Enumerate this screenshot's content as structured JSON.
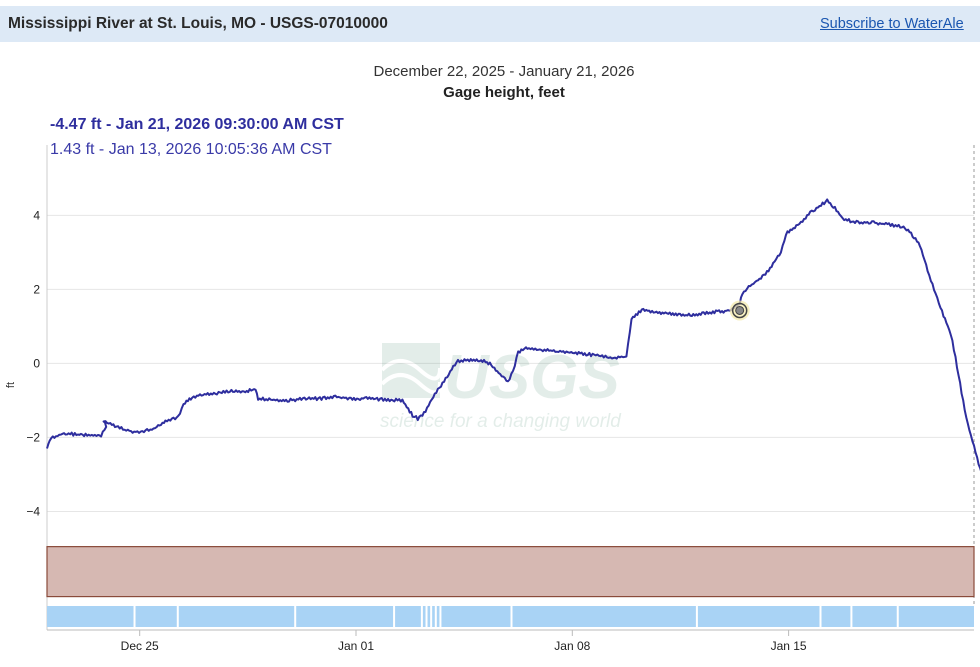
{
  "header": {
    "title": "Mississippi River at St. Louis, MO - USGS-07010000",
    "subscribe_label": "Subscribe to WaterAle"
  },
  "watermark": {
    "logo_text": "USGS",
    "tagline": "science for a changing world"
  },
  "readouts": {
    "current": "-4.47 ft - Jan 21, 2026 09:30:00 AM CST",
    "hover": "1.43 ft - Jan 13, 2026 10:05:36 AM CST"
  },
  "colors": {
    "series": "#2e2e9e",
    "header_bg": "#dde9f6",
    "band_fill": "#d6b8b2",
    "band_stroke": "#8a4a3a",
    "timeline": "#a9d3f5"
  },
  "chart_data": {
    "type": "line",
    "period": "December 22, 2025 - January 21, 2026",
    "title": "Gage height, feet",
    "ylabel": "ft",
    "xlim": [
      "2025-12-22",
      "2026-01-21"
    ],
    "ylim": [
      -6.5,
      5.9
    ],
    "yticks": [
      -4,
      -2,
      0,
      2,
      4
    ],
    "xticks": [
      {
        "date": "2025-12-25",
        "label": "Dec 25"
      },
      {
        "date": "2026-01-01",
        "label": "Jan 01"
      },
      {
        "date": "2026-01-08",
        "label": "Jan 08"
      },
      {
        "date": "2026-01-15",
        "label": "Jan 15"
      }
    ],
    "grid": true,
    "shaded_band": {
      "y_from": -6.3,
      "y_to": -4.95
    },
    "highlight_point": {
      "x": "2026-01-13",
      "y": 1.43
    },
    "end_point": {
      "x": "2026-01-21",
      "y": -4.47
    },
    "series": [
      {
        "x": [
          "2025-12-22",
          "2025-12-22",
          "2025-12-22",
          "2025-12-23",
          "2025-12-23",
          "2025-12-23",
          "2025-12-24",
          "2025-12-24",
          "2025-12-24",
          "2025-12-25",
          "2025-12-25",
          "2025-12-25",
          "2025-12-26",
          "2025-12-26",
          "2025-12-26",
          "2025-12-27",
          "2025-12-27",
          "2025-12-27",
          "2025-12-28",
          "2025-12-28",
          "2025-12-28",
          "2025-12-29",
          "2025-12-29",
          "2025-12-30",
          "2025-12-30",
          "2025-12-31",
          "2025-12-31",
          "2026-01-01",
          "2026-01-01",
          "2026-01-02",
          "2026-01-02",
          "2026-01-03",
          "2026-01-03",
          "2026-01-03",
          "2026-01-04",
          "2026-01-04",
          "2026-01-04",
          "2026-01-05",
          "2026-01-05",
          "2026-01-05",
          "2026-01-05",
          "2026-01-06",
          "2026-01-06",
          "2026-01-06",
          "2026-01-07",
          "2026-01-07",
          "2026-01-07",
          "2026-01-08",
          "2026-01-08",
          "2026-01-09",
          "2026-01-09",
          "2026-01-09",
          "2026-01-10",
          "2026-01-10",
          "2026-01-10",
          "2026-01-11",
          "2026-01-11",
          "2026-01-11",
          "2026-01-12",
          "2026-01-12",
          "2026-01-13",
          "2026-01-13",
          "2026-01-13",
          "2026-01-13",
          "2026-01-14",
          "2026-01-14",
          "2026-01-14",
          "2026-01-15",
          "2026-01-15",
          "2026-01-16",
          "2026-01-16",
          "2026-01-16",
          "2026-01-17",
          "2026-01-17",
          "2026-01-18",
          "2026-01-18",
          "2026-01-18",
          "2026-01-19",
          "2026-01-19",
          "2026-01-19",
          "2026-01-20",
          "2026-01-20",
          "2026-01-20",
          "2026-01-21",
          "2026-01-21"
        ],
        "y": [
          -2.3,
          -2.05,
          -1.9,
          -1.95,
          -1.7,
          -1.55,
          -1.6,
          -1.7,
          -1.85,
          -1.85,
          -1.75,
          -1.55,
          -1.45,
          -1.1,
          -0.9,
          -0.85,
          -0.8,
          -0.75,
          -0.75,
          -0.7,
          -0.95,
          -1.0,
          -1.0,
          -0.95,
          -0.95,
          -0.9,
          -0.95,
          -0.95,
          -0.97,
          -1.0,
          -1.4,
          -1.5,
          -1.3,
          -0.9,
          -0.3,
          0.05,
          0.1,
          0.1,
          0.0,
          -0.3,
          -0.5,
          -0.2,
          0.3,
          0.4,
          0.35,
          0.35,
          0.3,
          0.25,
          0.2,
          0.15,
          0.2,
          1.2,
          1.45,
          1.4,
          1.35,
          1.35,
          1.3,
          1.3,
          1.35,
          1.4,
          1.43,
          1.6,
          1.9,
          2.2,
          2.4,
          3.0,
          3.5,
          3.7,
          4.1,
          4.4,
          4.2,
          3.9,
          3.8,
          3.8,
          3.75,
          3.7,
          3.55,
          3.2,
          2.5,
          1.5,
          0.8,
          -0.3,
          -1.5,
          -3.0,
          -4.47
        ],
        "xfrac": [
          0.0,
          0.083,
          0.5,
          0.75,
          0.917,
          0.833,
          0.0,
          0.25,
          0.667,
          0.083,
          0.5,
          0.833,
          0.25,
          0.417,
          0.75,
          0.0,
          0.5,
          0.917,
          0.417,
          0.75,
          0.833,
          0.5,
          0.833,
          0.333,
          0.833,
          0.333,
          0.833,
          0.333,
          0.833,
          0.5,
          0.833,
          0.0,
          0.25,
          0.5,
          0.0,
          0.25,
          0.667,
          0.0,
          0.333,
          0.667,
          0.917,
          0.083,
          0.25,
          0.5,
          0.0,
          0.5,
          0.917,
          0.5,
          0.917,
          0.333,
          0.75,
          0.917,
          0.25,
          0.583,
          0.917,
          0.25,
          0.583,
          0.917,
          0.25,
          0.75,
          0.083,
          0.417,
          0.5,
          0.917,
          0.25,
          0.75,
          0.917,
          0.25,
          0.75,
          0.25,
          0.5,
          0.75,
          0.25,
          0.75,
          0.25,
          0.667,
          0.917,
          0.25,
          0.5,
          0.917,
          0.25,
          0.5,
          0.75,
          0.25,
          0.917
        ]
      }
    ]
  }
}
